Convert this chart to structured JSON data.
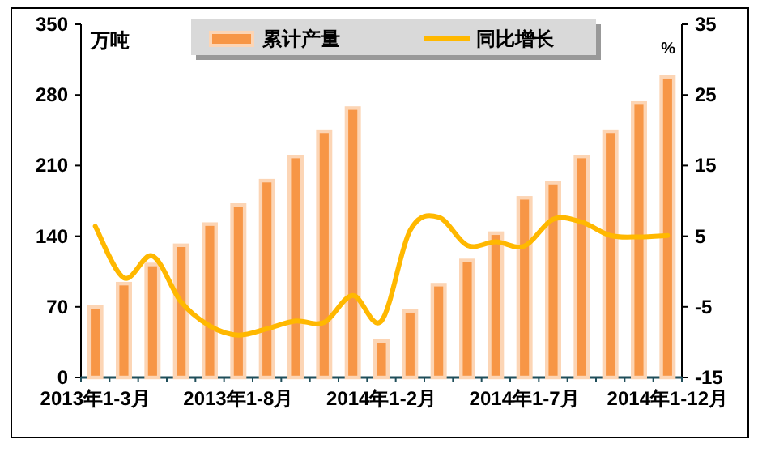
{
  "chart_data": {
    "type": "bar",
    "ylabel": "万吨",
    "y2label": "%",
    "categories": [
      "2013年1-3月",
      null,
      null,
      null,
      null,
      "2013年1-8月",
      null,
      null,
      null,
      null,
      "2014年1-2月",
      null,
      null,
      null,
      null,
      "2014年1-7月",
      null,
      null,
      null,
      null,
      "2014年1-12月"
    ],
    "series": [
      {
        "name": "累计产量",
        "color": "#f79646",
        "values": [
          70,
          93,
          112,
          131,
          152,
          171,
          195,
          219,
          244,
          267,
          36,
          66,
          92,
          116,
          143,
          178,
          193,
          219,
          244,
          272,
          298
        ]
      },
      {
        "name": "同比增长",
        "type": "line",
        "axis": "y2",
        "color": "#ffb800",
        "values": [
          6.4,
          -0.9,
          2.2,
          -4.3,
          -7.7,
          -9.0,
          -8.1,
          -7.0,
          -7.2,
          -3.4,
          -7.0,
          5.8,
          7.7,
          3.7,
          4.2,
          3.6,
          7.4,
          7.0,
          5.1,
          4.9,
          5.1
        ]
      }
    ],
    "ylim": [
      0,
      350
    ],
    "yticks": [
      0,
      70,
      140,
      210,
      280,
      350
    ],
    "y2lim": [
      -15,
      35
    ],
    "y2ticks": [
      -15,
      -5,
      5,
      15,
      25,
      35
    ],
    "legend": "top",
    "grid": false,
    "marker": "none"
  }
}
